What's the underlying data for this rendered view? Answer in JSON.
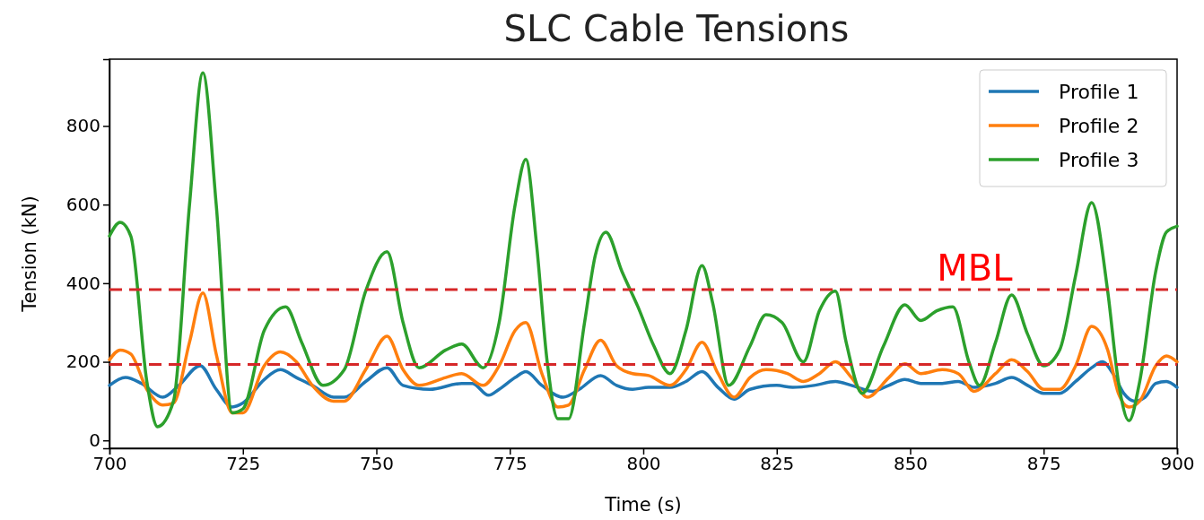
{
  "chart_data": {
    "type": "line",
    "title": "SLC Cable Tensions",
    "xlabel": "Time (s)",
    "ylabel": "Tension (kN)",
    "xlim": [
      700,
      900
    ],
    "xticks": [
      700,
      725,
      750,
      775,
      800,
      825,
      850,
      875,
      900
    ],
    "ylim": [
      -20,
      970
    ],
    "yticks": [
      0,
      200,
      400,
      600,
      800
    ],
    "legend": "top right",
    "grid": false,
    "ref_lines": [
      {
        "axis": "y",
        "value": 384,
        "label": "MBL",
        "color": "#d62728",
        "line_style": "dashed"
      },
      {
        "axis": "y",
        "value": 193,
        "color": "#d62728",
        "line_style": "dashed"
      }
    ],
    "series": [
      {
        "name": "Profile 1",
        "color": "#1f77b4",
        "x": [
          700,
          703,
          706,
          710,
          713,
          717,
          720,
          723,
          725,
          729,
          732,
          735,
          738,
          742,
          744,
          748,
          752,
          755,
          760,
          766,
          768,
          771,
          773,
          776,
          778,
          781,
          785,
          788,
          792,
          795,
          798,
          801,
          805,
          808,
          811,
          814,
          817,
          820,
          825,
          828,
          832,
          836,
          839,
          843,
          846,
          849,
          852,
          856,
          859,
          862,
          866,
          869,
          872,
          875,
          878,
          881,
          884,
          886,
          888,
          890,
          892,
          894,
          896,
          898,
          900
        ],
        "values": [
          140,
          160,
          145,
          110,
          140,
          190,
          130,
          85,
          95,
          155,
          180,
          160,
          140,
          110,
          110,
          150,
          185,
          140,
          130,
          145,
          145,
          115,
          130,
          160,
          175,
          140,
          110,
          130,
          165,
          140,
          130,
          135,
          135,
          150,
          175,
          135,
          105,
          130,
          140,
          135,
          140,
          150,
          140,
          125,
          140,
          155,
          145,
          145,
          150,
          135,
          145,
          160,
          140,
          120,
          120,
          150,
          185,
          200,
          170,
          120,
          100,
          110,
          145,
          150,
          135
        ]
      },
      {
        "name": "Profile 2",
        "color": "#ff7f0e",
        "x": [
          700,
          702,
          704,
          707,
          710,
          712,
          715,
          717.5,
          720,
          723,
          725,
          729,
          732,
          735,
          738,
          742,
          744,
          748,
          752,
          755,
          758,
          763,
          766,
          770,
          773,
          776,
          778,
          781,
          784,
          786,
          789,
          792,
          795,
          798,
          801,
          805,
          808,
          811,
          814,
          817,
          820,
          823,
          827,
          830,
          833,
          836,
          839,
          842,
          846,
          849,
          852,
          856,
          859,
          862,
          866,
          869,
          872,
          875,
          878,
          881,
          884,
          887,
          889,
          891,
          893,
          896,
          898,
          900
        ],
        "values": [
          205,
          230,
          220,
          130,
          90,
          95,
          250,
          375,
          220,
          70,
          70,
          190,
          225,
          200,
          140,
          100,
          100,
          180,
          265,
          180,
          140,
          160,
          170,
          140,
          190,
          280,
          300,
          170,
          85,
          90,
          180,
          255,
          190,
          170,
          165,
          140,
          180,
          250,
          170,
          110,
          160,
          180,
          170,
          150,
          170,
          200,
          160,
          110,
          160,
          195,
          170,
          180,
          170,
          125,
          170,
          205,
          175,
          130,
          130,
          190,
          290,
          230,
          120,
          85,
          100,
          190,
          215,
          200
        ]
      },
      {
        "name": "Profile 3",
        "color": "#2ca02c",
        "x": [
          700,
          702,
          704,
          707,
          709,
          712,
          715,
          717.5,
          720,
          723,
          725,
          729,
          733,
          736,
          740,
          744,
          748,
          752,
          755,
          758,
          763,
          766,
          770,
          773,
          776,
          778,
          780,
          782,
          784,
          786,
          789,
          791,
          793,
          796,
          799,
          802,
          805,
          808,
          811,
          813,
          816,
          820,
          823,
          826,
          830,
          833,
          836,
          838,
          841,
          845,
          849,
          852,
          855,
          858,
          861,
          863,
          866,
          869,
          872,
          875,
          878,
          881,
          884,
          887,
          889,
          891,
          893,
          896,
          898,
          900
        ],
        "values": [
          520,
          555,
          520,
          150,
          35,
          100,
          600,
          935,
          600,
          70,
          80,
          280,
          340,
          250,
          140,
          180,
          380,
          480,
          300,
          185,
          230,
          245,
          185,
          300,
          600,
          715,
          500,
          200,
          55,
          55,
          300,
          470,
          530,
          430,
          340,
          240,
          170,
          280,
          445,
          350,
          140,
          240,
          320,
          300,
          200,
          330,
          380,
          250,
          120,
          240,
          345,
          305,
          330,
          340,
          200,
          140,
          250,
          370,
          270,
          190,
          230,
          420,
          605,
          380,
          150,
          50,
          150,
          430,
          530,
          545
        ]
      }
    ]
  }
}
